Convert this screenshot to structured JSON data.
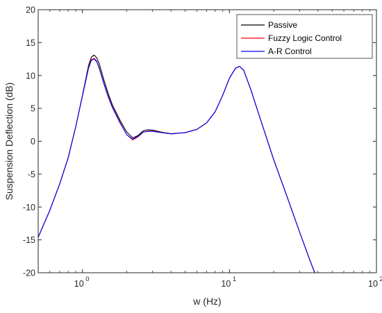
{
  "chart_data": {
    "type": "line",
    "xlabel": "w (Hz)",
    "ylabel": "Suspension Deflection (dB)",
    "xscale": "log",
    "xlim": [
      0.5,
      100
    ],
    "ylim": [
      -20,
      20
    ],
    "x_ticks": [
      {
        "value": 1,
        "label": "10",
        "exp": "0"
      },
      {
        "value": 10,
        "label": "10",
        "exp": "1"
      },
      {
        "value": 100,
        "label": "10",
        "exp": "2"
      }
    ],
    "y_ticks": [
      -20,
      -15,
      -10,
      -5,
      0,
      5,
      10,
      15,
      20
    ],
    "grid": false,
    "legend_position": "top-right",
    "series": [
      {
        "name": "Passive",
        "color": "#000000",
        "points": [
          [
            0.5,
            -14.6
          ],
          [
            0.6,
            -10.5
          ],
          [
            0.7,
            -6.5
          ],
          [
            0.8,
            -2.5
          ],
          [
            0.9,
            2.2
          ],
          [
            1.0,
            7.0
          ],
          [
            1.1,
            11.5
          ],
          [
            1.15,
            12.8
          ],
          [
            1.2,
            13.1
          ],
          [
            1.25,
            12.7
          ],
          [
            1.3,
            11.8
          ],
          [
            1.4,
            9.3
          ],
          [
            1.5,
            7.2
          ],
          [
            1.6,
            5.5
          ],
          [
            1.8,
            3.2
          ],
          [
            2.0,
            1.4
          ],
          [
            2.2,
            0.5
          ],
          [
            2.4,
            0.9
          ],
          [
            2.6,
            1.6
          ],
          [
            2.8,
            1.75
          ],
          [
            3.0,
            1.7
          ],
          [
            3.5,
            1.35
          ],
          [
            4.0,
            1.15
          ],
          [
            5.0,
            1.3
          ],
          [
            6.0,
            1.8
          ],
          [
            7.0,
            2.8
          ],
          [
            8.0,
            4.5
          ],
          [
            9.0,
            7.0
          ],
          [
            10.0,
            9.6
          ],
          [
            11.0,
            11.1
          ],
          [
            11.7,
            11.4
          ],
          [
            12.5,
            10.8
          ],
          [
            14.0,
            7.8
          ],
          [
            16.0,
            3.8
          ],
          [
            20.0,
            -2.8
          ],
          [
            25.0,
            -8.8
          ],
          [
            30.0,
            -13.8
          ],
          [
            35.0,
            -17.9
          ],
          [
            38.0,
            -20.0
          ]
        ]
      },
      {
        "name": "Fuzzy Logic Control",
        "color": "#ff0000",
        "points": [
          [
            0.5,
            -14.6
          ],
          [
            0.6,
            -10.5
          ],
          [
            0.7,
            -6.5
          ],
          [
            0.8,
            -2.5
          ],
          [
            0.9,
            2.2
          ],
          [
            1.0,
            6.9
          ],
          [
            1.1,
            11.2
          ],
          [
            1.15,
            12.4
          ],
          [
            1.2,
            12.6
          ],
          [
            1.25,
            12.2
          ],
          [
            1.3,
            11.2
          ],
          [
            1.4,
            8.8
          ],
          [
            1.5,
            6.8
          ],
          [
            1.6,
            5.2
          ],
          [
            1.8,
            2.9
          ],
          [
            2.0,
            1.0
          ],
          [
            2.2,
            0.2
          ],
          [
            2.4,
            0.7
          ],
          [
            2.6,
            1.4
          ],
          [
            2.8,
            1.55
          ],
          [
            3.0,
            1.55
          ],
          [
            3.5,
            1.3
          ],
          [
            4.0,
            1.12
          ],
          [
            5.0,
            1.3
          ],
          [
            6.0,
            1.8
          ],
          [
            7.0,
            2.8
          ],
          [
            8.0,
            4.5
          ],
          [
            9.0,
            7.0
          ],
          [
            10.0,
            9.6
          ],
          [
            11.0,
            11.1
          ],
          [
            11.7,
            11.4
          ],
          [
            12.5,
            10.8
          ],
          [
            14.0,
            7.8
          ],
          [
            16.0,
            3.8
          ],
          [
            20.0,
            -2.8
          ],
          [
            25.0,
            -8.8
          ],
          [
            30.0,
            -13.8
          ],
          [
            35.0,
            -17.9
          ],
          [
            38.0,
            -20.0
          ]
        ]
      },
      {
        "name": "A-R Control",
        "color": "#0000ff",
        "points": [
          [
            0.5,
            -14.6
          ],
          [
            0.6,
            -10.5
          ],
          [
            0.7,
            -6.5
          ],
          [
            0.8,
            -2.5
          ],
          [
            0.9,
            2.2
          ],
          [
            1.0,
            6.9
          ],
          [
            1.1,
            11.1
          ],
          [
            1.15,
            12.3
          ],
          [
            1.2,
            12.5
          ],
          [
            1.25,
            12.1
          ],
          [
            1.3,
            11.1
          ],
          [
            1.4,
            8.7
          ],
          [
            1.5,
            6.7
          ],
          [
            1.6,
            5.1
          ],
          [
            1.8,
            2.8
          ],
          [
            2.0,
            1.0
          ],
          [
            2.2,
            0.3
          ],
          [
            2.4,
            0.8
          ],
          [
            2.6,
            1.4
          ],
          [
            2.8,
            1.5
          ],
          [
            3.0,
            1.5
          ],
          [
            3.5,
            1.28
          ],
          [
            4.0,
            1.12
          ],
          [
            5.0,
            1.3
          ],
          [
            6.0,
            1.8
          ],
          [
            7.0,
            2.8
          ],
          [
            8.0,
            4.5
          ],
          [
            9.0,
            7.0
          ],
          [
            10.0,
            9.6
          ],
          [
            11.0,
            11.1
          ],
          [
            11.7,
            11.4
          ],
          [
            12.5,
            10.8
          ],
          [
            14.0,
            7.8
          ],
          [
            16.0,
            3.8
          ],
          [
            20.0,
            -2.8
          ],
          [
            25.0,
            -8.8
          ],
          [
            30.0,
            -13.8
          ],
          [
            35.0,
            -17.9
          ],
          [
            38.0,
            -20.0
          ]
        ]
      }
    ]
  }
}
